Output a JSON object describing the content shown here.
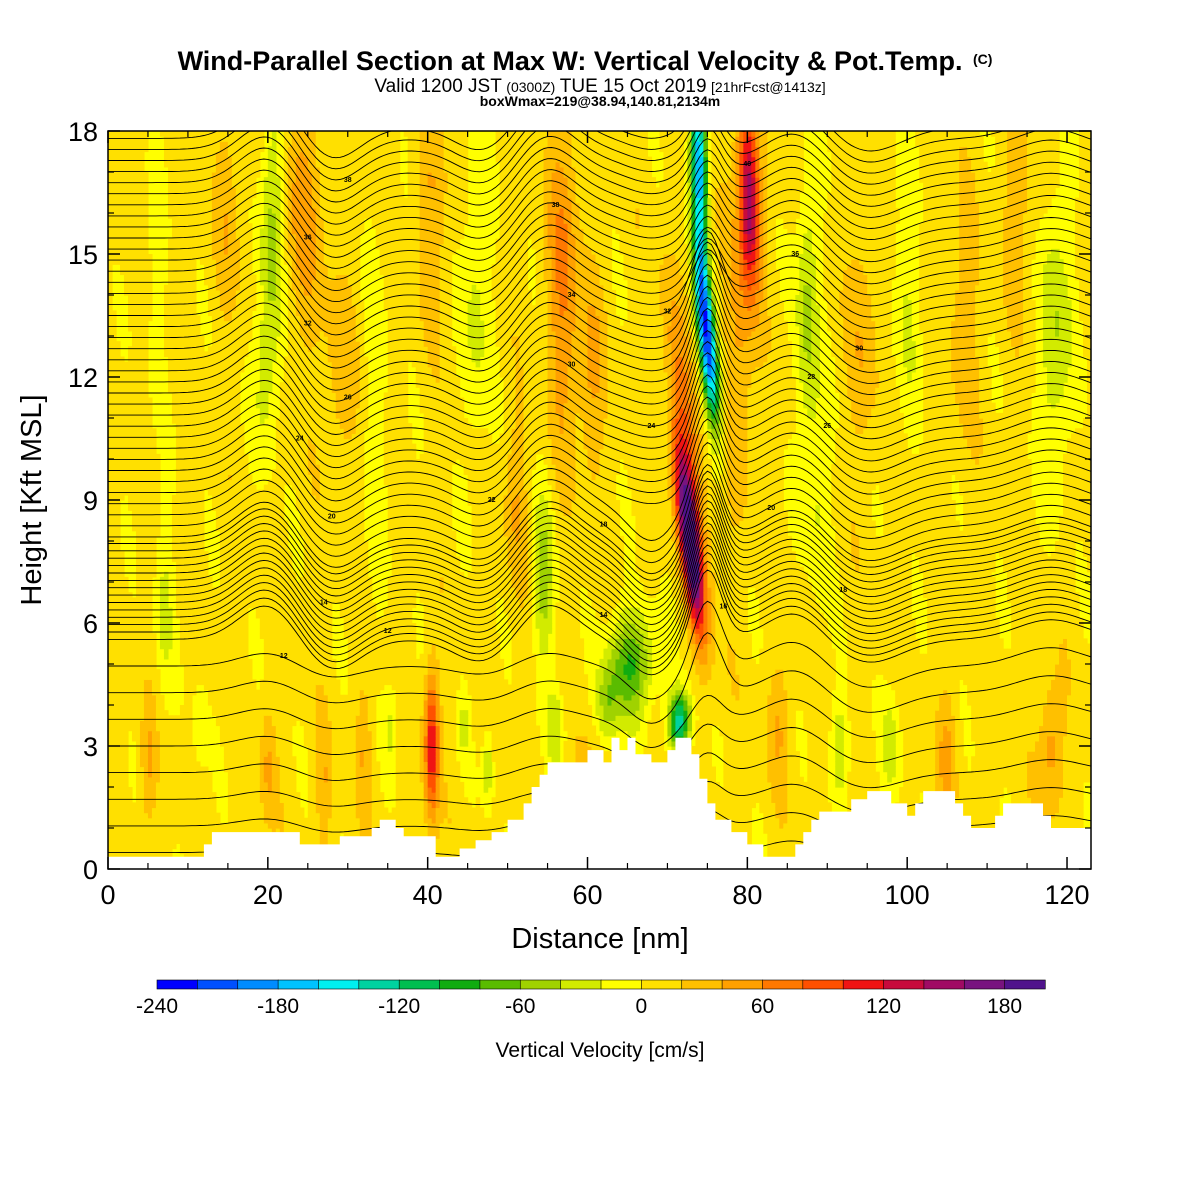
{
  "title": {
    "main": "Wind-Parallel Section at Max W: Vertical Velocity & Pot.Temp.",
    "copyright": "(C)",
    "valid_prefix": "Valid 1200 JST",
    "valid_utc": "(0300Z)",
    "valid_date": "TUE 15 Oct 2019",
    "forecast": "[21hrFcst@1413z]",
    "boxinfo": "boxWmax=219@38.94,140.81,2134m"
  },
  "chart_data": {
    "type": "heatmap",
    "xlabel": "Distance [nm]",
    "ylabel": "Height [Kft MSL]",
    "xlim": [
      0,
      123
    ],
    "ylim": [
      0,
      18
    ],
    "x_ticks": [
      "0",
      "20",
      "40",
      "60",
      "80",
      "100",
      "120"
    ],
    "y_ticks": [
      "0",
      "3",
      "6",
      "9",
      "12",
      "15",
      "18"
    ],
    "colorbar": {
      "label": "Vertical Velocity [cm/s]",
      "range": [
        -240,
        200
      ],
      "step": 20,
      "tick_labels": [
        "-240",
        "-180",
        "-120",
        "-60",
        "0",
        "60",
        "120",
        "180"
      ],
      "colors": [
        "#0000ff",
        "#0050ff",
        "#008cff",
        "#00c3ff",
        "#00f0f0",
        "#00d2a0",
        "#00be50",
        "#10ac10",
        "#5abc00",
        "#a0d200",
        "#d2eb00",
        "#ffff00",
        "#ffe000",
        "#ffc000",
        "#ffa000",
        "#ff7800",
        "#ff5000",
        "#f01414",
        "#c80a3c",
        "#a00a64",
        "#78147f",
        "#50148c"
      ]
    },
    "contours": {
      "field": "Potential Temperature",
      "labels": [
        "12",
        "14",
        "16",
        "18",
        "20",
        "22",
        "24",
        "26",
        "28",
        "30",
        "32",
        "34",
        "36",
        "38",
        "40"
      ]
    },
    "terrain": [
      [
        0,
        0.3
      ],
      [
        12,
        0.3
      ],
      [
        12,
        0.6
      ],
      [
        13,
        0.6
      ],
      [
        13,
        0.9
      ],
      [
        24,
        0.9
      ],
      [
        24,
        0.6
      ],
      [
        29,
        0.6
      ],
      [
        29,
        0.8
      ],
      [
        33,
        0.8
      ],
      [
        33,
        1.0
      ],
      [
        34,
        1.0
      ],
      [
        34,
        1.2
      ],
      [
        36,
        1.2
      ],
      [
        36,
        1.0
      ],
      [
        37,
        1.0
      ],
      [
        37,
        0.8
      ],
      [
        41,
        0.8
      ],
      [
        41,
        0.3
      ],
      [
        44,
        0.3
      ],
      [
        44,
        0.5
      ],
      [
        46,
        0.5
      ],
      [
        46,
        0.7
      ],
      [
        48,
        0.7
      ],
      [
        48,
        0.9
      ],
      [
        50,
        0.9
      ],
      [
        50,
        1.2
      ],
      [
        52,
        1.2
      ],
      [
        52,
        1.6
      ],
      [
        53,
        1.6
      ],
      [
        53,
        2.0
      ],
      [
        54,
        2.0
      ],
      [
        54,
        2.3
      ],
      [
        55,
        2.3
      ],
      [
        55,
        2.6
      ],
      [
        60,
        2.6
      ],
      [
        60,
        2.9
      ],
      [
        62,
        2.9
      ],
      [
        62,
        2.6
      ],
      [
        62,
        2.6
      ],
      [
        63,
        2.6
      ],
      [
        63,
        3.2
      ],
      [
        64,
        3.2
      ],
      [
        64,
        2.9
      ],
      [
        65,
        2.9
      ],
      [
        65,
        3.2
      ],
      [
        66,
        3.2
      ],
      [
        66,
        2.8
      ],
      [
        68,
        2.8
      ],
      [
        68,
        2.6
      ],
      [
        70,
        2.6
      ],
      [
        70,
        2.9
      ],
      [
        71,
        2.9
      ],
      [
        71,
        3.2
      ],
      [
        73,
        3.2
      ],
      [
        73,
        2.8
      ],
      [
        74,
        2.8
      ],
      [
        74,
        2.2
      ],
      [
        75,
        2.2
      ],
      [
        75,
        1.6
      ],
      [
        76,
        1.6
      ],
      [
        76,
        1.2
      ],
      [
        78,
        1.2
      ],
      [
        78,
        0.9
      ],
      [
        80,
        0.9
      ],
      [
        80,
        0.6
      ],
      [
        82,
        0.6
      ],
      [
        82,
        0.3
      ],
      [
        83,
        0.3
      ],
      [
        83,
        0.3
      ],
      [
        86,
        0.3
      ],
      [
        86,
        0.6
      ],
      [
        87,
        0.6
      ],
      [
        87,
        0.9
      ],
      [
        88,
        0.9
      ],
      [
        88,
        1.2
      ],
      [
        89,
        1.2
      ],
      [
        89,
        1.4
      ],
      [
        93,
        1.4
      ],
      [
        93,
        1.7
      ],
      [
        95,
        1.7
      ],
      [
        95,
        1.9
      ],
      [
        98,
        1.9
      ],
      [
        98,
        1.6
      ],
      [
        100,
        1.6
      ],
      [
        100,
        1.3
      ],
      [
        101,
        1.3
      ],
      [
        101,
        1.6
      ],
      [
        102,
        1.6
      ],
      [
        102,
        1.9
      ],
      [
        106,
        1.9
      ],
      [
        106,
        1.6
      ],
      [
        107,
        1.6
      ],
      [
        107,
        1.3
      ],
      [
        108,
        1.3
      ],
      [
        108,
        1.0
      ],
      [
        111,
        1.0
      ],
      [
        111,
        1.3
      ],
      [
        112,
        1.3
      ],
      [
        112,
        1.6
      ],
      [
        117,
        1.6
      ],
      [
        117,
        1.3
      ],
      [
        118,
        1.3
      ],
      [
        118,
        1.0
      ],
      [
        121,
        1.0
      ],
      [
        121,
        1.0
      ],
      [
        123,
        1.0
      ]
    ]
  }
}
